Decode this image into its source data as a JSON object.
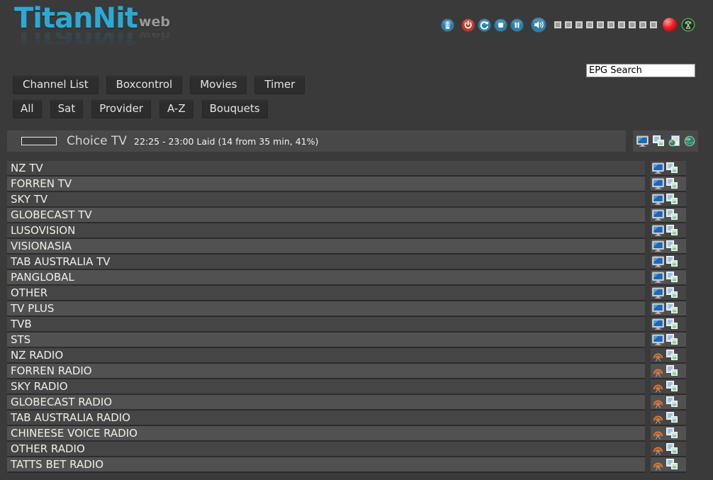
{
  "brand": {
    "name": "TitanNit",
    "suffix": "web"
  },
  "colors": {
    "accent_cyan": "#2ba9d4",
    "page_background": "#3a3a3a",
    "progress_orange": "#e8830e",
    "power_red": "#c0392b",
    "control_blue": "#2e7ea6",
    "signal_green": "#46a046",
    "radio_orange": "#e0772f"
  },
  "topbar": {
    "control_icons": [
      "remote-icon",
      "power-icon",
      "refresh-icon",
      "stop-icon",
      "pause-icon",
      "speaker-icon"
    ],
    "volume_steps": 10,
    "status_icons": [
      "record-icon",
      "antenna-icon"
    ]
  },
  "search": {
    "value": "EPG Search"
  },
  "nav": {
    "items": [
      "Channel List",
      "Boxcontrol",
      "Movies",
      "Timer"
    ]
  },
  "filters": {
    "items": [
      "All",
      "Sat",
      "Provider",
      "A-Z",
      "Bouquets"
    ]
  },
  "now_playing": {
    "channel": "Choice TV",
    "epg_text": "22:25 - 23:00 Laid (14 from 35 min, 41%)",
    "progress_percent": 41,
    "icons": [
      "tv-screen-icon",
      "screenshot-icon",
      "epg-page-icon",
      "web-icon"
    ]
  },
  "channels": {
    "row_icons": {
      "tv": "tv-icon",
      "radio": "radio-icon",
      "action": "screenshot-icon"
    },
    "items": [
      {
        "name": "NZ TV",
        "type": "tv"
      },
      {
        "name": "FORREN TV",
        "type": "tv"
      },
      {
        "name": "SKY TV",
        "type": "tv"
      },
      {
        "name": "GLOBECAST TV",
        "type": "tv"
      },
      {
        "name": "LUSOVISION",
        "type": "tv"
      },
      {
        "name": "VISIONASIA",
        "type": "tv"
      },
      {
        "name": "TAB AUSTRALIA TV",
        "type": "tv"
      },
      {
        "name": "PANGLOBAL",
        "type": "tv"
      },
      {
        "name": "OTHER",
        "type": "tv"
      },
      {
        "name": "TV PLUS",
        "type": "tv"
      },
      {
        "name": "TVB",
        "type": "tv"
      },
      {
        "name": "STS",
        "type": "tv"
      },
      {
        "name": "NZ RADIO",
        "type": "radio"
      },
      {
        "name": "FORREN RADIO",
        "type": "radio"
      },
      {
        "name": "SKY RADIO",
        "type": "radio"
      },
      {
        "name": "GLOBECAST RADIO",
        "type": "radio"
      },
      {
        "name": "TAB AUSTRALIA RADIO",
        "type": "radio"
      },
      {
        "name": "CHINEESE VOICE RADIO",
        "type": "radio"
      },
      {
        "name": "OTHER RADIO",
        "type": "radio"
      },
      {
        "name": "TATTS BET RADIO",
        "type": "radio"
      }
    ]
  }
}
